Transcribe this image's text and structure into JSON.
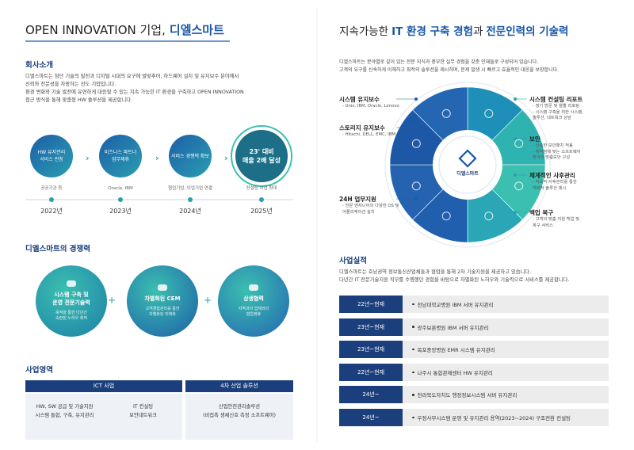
{
  "left": {
    "title": {
      "prefix": "OPEN INNOVATION 기업,",
      "brand": "디엘스마트"
    },
    "about": {
      "heading": "회사소개",
      "paragraphs": [
        "디엘스마트는 첨단 기술의 발전과 디지털 시대의 요구에 발맞추어, 하드웨어 설치 및 유지보수 분야에서",
        "신뢰와 전문성을 자랑하는 선도 기업입니다.",
        "환경 변화와 기술 발전에 유연하게 대응할 수 있는 지속 가능한 IT 환경을 구축하고 OPEN INNOVATION",
        "접근 방식을 통해 맞춤형 HW 솔루션을 제공합니다."
      ]
    },
    "timeline": [
      {
        "label": [
          "HW 유지관리",
          "서비스 런칭"
        ],
        "note": "공공기관 등",
        "year": "2022년"
      },
      {
        "label": [
          "비즈니스 파트너",
          "업무제휴"
        ],
        "note": "Oracle, IBM",
        "year": "2023년"
      },
      {
        "label": [
          "서비스 경쟁력 확보"
        ],
        "note": "협업기업, 이업기업 연결",
        "year": "2024년"
      },
      {
        "label": [
          "23' 대비",
          "매출 2배 달성"
        ],
        "note": "컨설팅 사업 확대",
        "year": "2025년"
      }
    ],
    "strengths": {
      "heading": "디엘스마트의 경쟁력",
      "items": [
        {
          "title": [
            "시스템 구축 및",
            "운영 전문기술력"
          ],
          "desc": [
            "축적을 통한 다년간",
            "숙련된 노하우 축적"
          ]
        },
        {
          "title": [
            "차별화된 CEM"
          ],
          "desc": [
            "고객경험관리를 통한",
            "차별화된 미래화"
          ]
        },
        {
          "title": [
            "상생협력"
          ],
          "desc": [
            "지역과의 업체와의",
            "협업제휴"
          ]
        }
      ]
    },
    "business": {
      "heading": "사업영역",
      "columns": [
        {
          "header": "ICT 사업",
          "cells": [
            [
              "HW, SW 공급 및 기술지원",
              "시스템 통합, 구축, 유지관리"
            ],
            [
              "IT 컨설팅",
              "보안네트워크"
            ]
          ]
        },
        {
          "header": "4차 산업 솔루션",
          "cells": [
            [
              "산업안전관리솔루션",
              "(비접촉 생체신호 측정 소프트웨어)"
            ]
          ]
        }
      ]
    }
  },
  "right": {
    "title": [
      "지속가능한",
      "IT 환경 구축 경험",
      "과",
      "전문인력의 기술력"
    ],
    "intro": [
      "디엘스마트는 분야별로 깊이 있는 전문 지식과 풍부한 실무 경험을 갖춘 인재들로 구성되어 있습니다.",
      "고객의 요구를 신속하게 이해하고 최적의 솔루션을 제시하며, 문제 발생 시 빠르고 효율적인 대응을 보장합니다."
    ],
    "services": {
      "center": "디엘스마트",
      "left_items": [
        {
          "title": "시스템 유지보수",
          "details": [
            "- Unix, IBM, Oracle, Lenovo"
          ]
        },
        {
          "title": "스토리지 유지보수",
          "details": [
            "- Hitachi, DELL, EMC, IBM"
          ]
        },
        {
          "title": "24H 업무지원",
          "details": [
            "- 전문 엔지니어의 다양한 OS 및",
            "어플리케이션 설치"
          ]
        }
      ],
      "right_items": [
        {
          "title": "시스템 컨설팅 리포트",
          "details": [
            "- 정기 방문 및 월별 리포팅",
            "- 시스템 구축을 위한 시스템,",
            "솔루션, 네트워크 상담"
          ]
        },
        {
          "title": "보안",
          "details": [
            "- 신속한 보안패치 적용",
            "- 취약점에 맞는 소프트웨어",
            "방식의 맞춤보안 구성"
          ]
        },
        {
          "title": "체계적인 사후관리",
          "details": [
            "- 지속적 사후관리를 통한",
            "체계적 솔루션 제시"
          ]
        },
        {
          "title": "백업 복구",
          "details": [
            "- 고객의 맞춤 지원 백업 및",
            "복구 서비스"
          ]
        }
      ]
    },
    "records": {
      "heading": "사업실적",
      "intro": [
        "디엘스마트는 호남권역 정보통신산업체들과 협업을 통해 2차 기술지원을 제공하고 있습니다.",
        "다년간 IT 전문기술지원 직무를 수행했던 경험을 바탕으로 차별화된 노하우와 기술력으로 서비스를 제공합니다."
      ],
      "rows": [
        {
          "period": "22년~현재",
          "project": "전남대학교병원 IBM 서버 유지관리"
        },
        {
          "period": "23년~현재",
          "project": "광주보훈병원 IBM 서버 유지관리"
        },
        {
          "period": "23년~현재",
          "project": "목포중앙병원 EMR 시스템 유지관리"
        },
        {
          "period": "22년~현재",
          "project": "나주시 통합관제센터 HW 유지관리"
        },
        {
          "period": "24년~",
          "project": "전라북도자치도 행정정보시스템 서버 유지관리"
        },
        {
          "period": "24년~",
          "project": "우정사무시스템 운영 및 유지관리 용역(2023~2024) 구조전환 컨설팅"
        }
      ]
    }
  }
}
